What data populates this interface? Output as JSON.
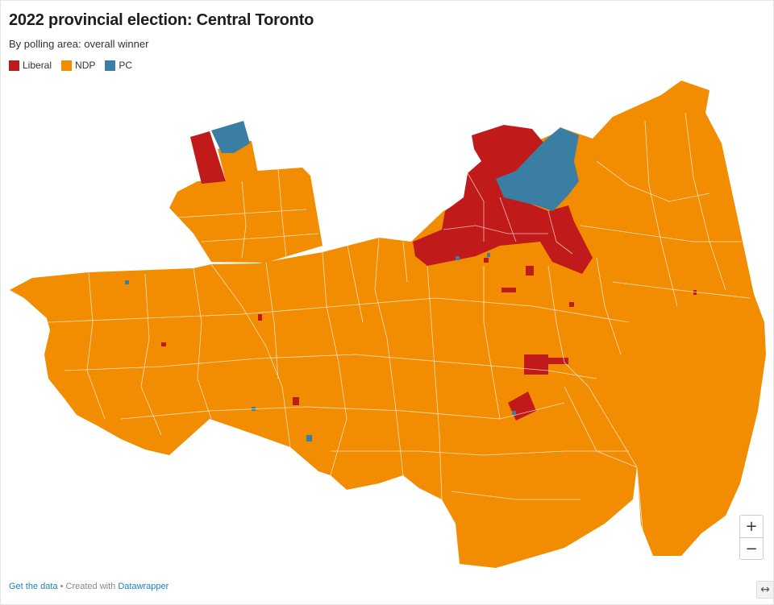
{
  "header": {
    "title": "2022 provincial election: Central Toronto",
    "subtitle": "By polling area: overall winner"
  },
  "legend": {
    "items": [
      {
        "label": "Liberal",
        "color": "#c01a1a"
      },
      {
        "label": "NDP",
        "color": "#f28c00"
      },
      {
        "label": "PC",
        "color": "#3a7fa3"
      }
    ]
  },
  "colors": {
    "liberal": "#c01a1a",
    "ndp": "#f28c00",
    "pc": "#3a7fa3",
    "boundary": "#ffffff"
  },
  "zoom": {
    "in_label": "+",
    "out_label": "−"
  },
  "footer": {
    "get_data": "Get the data",
    "separator": " • Created with ",
    "credit": "Datawrapper"
  },
  "expand_icon": "↔"
}
